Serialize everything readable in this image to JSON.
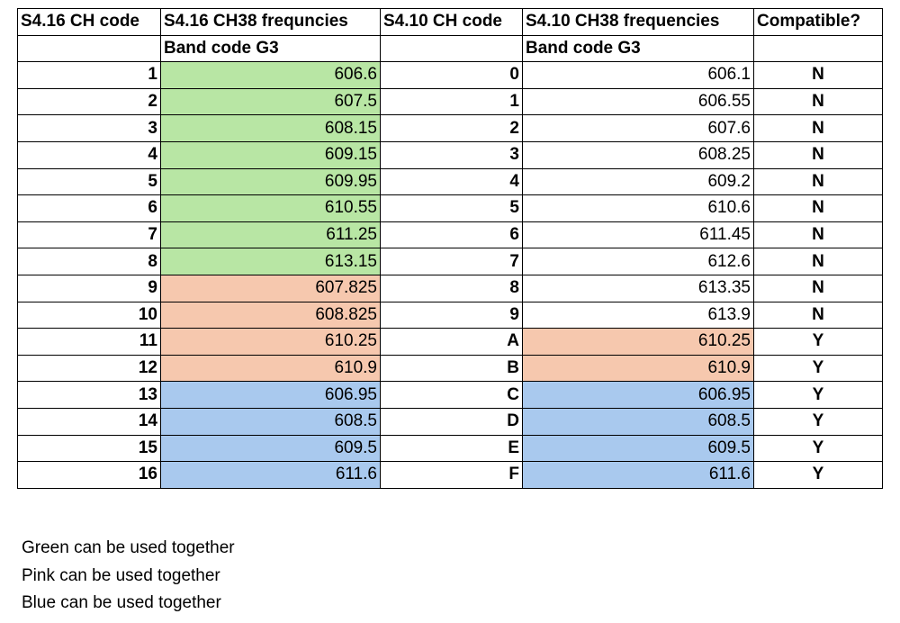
{
  "headers": {
    "h1": "S4.16 CH code",
    "h2": "S4.16 CH38 frequncies",
    "h3": "S4.10 CH code",
    "h4": "S4.10 CH38 frequencies",
    "h5": "Compatible?"
  },
  "subheaders": {
    "h2_sub": "Band code G3",
    "h4_sub": "Band code G3"
  },
  "colors": {
    "green": "#b8e6a4",
    "pink": "#f6c8ae",
    "blue": "#a9c9ee"
  },
  "rows": [
    {
      "s416_code": "1",
      "s416_freq": "606.6",
      "s416_color": "green",
      "s410_code": "0",
      "s410_freq": "606.1",
      "s410_color": "none",
      "compatible": "N"
    },
    {
      "s416_code": "2",
      "s416_freq": "607.5",
      "s416_color": "green",
      "s410_code": "1",
      "s410_freq": "606.55",
      "s410_color": "none",
      "compatible": "N"
    },
    {
      "s416_code": "3",
      "s416_freq": "608.15",
      "s416_color": "green",
      "s410_code": "2",
      "s410_freq": "607.6",
      "s410_color": "none",
      "compatible": "N"
    },
    {
      "s416_code": "4",
      "s416_freq": "609.15",
      "s416_color": "green",
      "s410_code": "3",
      "s410_freq": "608.25",
      "s410_color": "none",
      "compatible": "N"
    },
    {
      "s416_code": "5",
      "s416_freq": "609.95",
      "s416_color": "green",
      "s410_code": "4",
      "s410_freq": "609.2",
      "s410_color": "none",
      "compatible": "N"
    },
    {
      "s416_code": "6",
      "s416_freq": "610.55",
      "s416_color": "green",
      "s410_code": "5",
      "s410_freq": "610.6",
      "s410_color": "none",
      "compatible": "N"
    },
    {
      "s416_code": "7",
      "s416_freq": "611.25",
      "s416_color": "green",
      "s410_code": "6",
      "s410_freq": "611.45",
      "s410_color": "none",
      "compatible": "N"
    },
    {
      "s416_code": "8",
      "s416_freq": "613.15",
      "s416_color": "green",
      "s410_code": "7",
      "s410_freq": "612.6",
      "s410_color": "none",
      "compatible": "N"
    },
    {
      "s416_code": "9",
      "s416_freq": "607.825",
      "s416_color": "pink",
      "s410_code": "8",
      "s410_freq": "613.35",
      "s410_color": "none",
      "compatible": "N"
    },
    {
      "s416_code": "10",
      "s416_freq": "608.825",
      "s416_color": "pink",
      "s410_code": "9",
      "s410_freq": "613.9",
      "s410_color": "none",
      "compatible": "N"
    },
    {
      "s416_code": "11",
      "s416_freq": "610.25",
      "s416_color": "pink",
      "s410_code": "A",
      "s410_freq": "610.25",
      "s410_color": "pink",
      "compatible": "Y"
    },
    {
      "s416_code": "12",
      "s416_freq": "610.9",
      "s416_color": "pink",
      "s410_code": "B",
      "s410_freq": "610.9",
      "s410_color": "pink",
      "compatible": "Y"
    },
    {
      "s416_code": "13",
      "s416_freq": "606.95",
      "s416_color": "blue",
      "s410_code": "C",
      "s410_freq": "606.95",
      "s410_color": "blue",
      "compatible": "Y"
    },
    {
      "s416_code": "14",
      "s416_freq": "608.5",
      "s416_color": "blue",
      "s410_code": "D",
      "s410_freq": "608.5",
      "s410_color": "blue",
      "compatible": "Y"
    },
    {
      "s416_code": "15",
      "s416_freq": "609.5",
      "s416_color": "blue",
      "s410_code": "E",
      "s410_freq": "609.5",
      "s410_color": "blue",
      "compatible": "Y"
    },
    {
      "s416_code": "16",
      "s416_freq": "611.6",
      "s416_color": "blue",
      "s410_code": "F",
      "s410_freq": "611.6",
      "s410_color": "blue",
      "compatible": "Y"
    }
  ],
  "notes": [
    "Green can be used together",
    "Pink can be used together",
    "Blue can be used together"
  ]
}
